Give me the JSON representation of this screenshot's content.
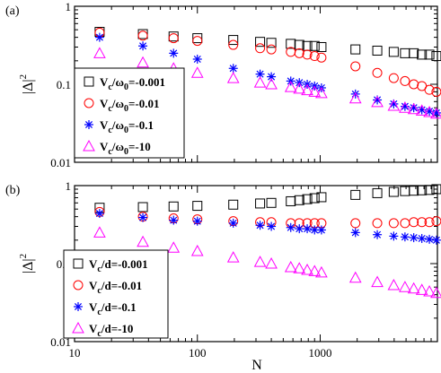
{
  "colors": {
    "black": "#000000",
    "red": "#ff0000",
    "blue": "#0000ff",
    "magenta": "#ff00ff"
  },
  "xlabel": "N",
  "chart_data": [
    {
      "type": "scatter",
      "panel_label": "(a)",
      "ylabel": "|Δ|",
      "ylabel_sup": "2",
      "xscale": "log",
      "yscale": "log",
      "xlim": [
        10,
        9000
      ],
      "ylim": [
        0.01,
        1
      ],
      "x_ticks": [
        "10",
        "100",
        "1000"
      ],
      "y_ticks": [
        "0.01",
        "0.1",
        "1"
      ],
      "legend": "left-lower",
      "x": [
        16,
        36,
        64,
        100,
        196,
        324,
        400,
        576,
        676,
        784,
        900,
        1024,
        1936,
        2916,
        3969,
        4900,
        5776,
        6724,
        7744,
        8836
      ],
      "series": [
        {
          "label_main": "V",
          "label_sub": "c",
          "label_rest": "/ω",
          "label_sub2": "0",
          "label_tail": "=-0.001",
          "marker": "square",
          "color": "#000000",
          "values": [
            0.47,
            0.44,
            0.41,
            0.39,
            0.37,
            0.35,
            0.34,
            0.33,
            0.32,
            0.31,
            0.31,
            0.3,
            0.28,
            0.27,
            0.26,
            0.25,
            0.25,
            0.24,
            0.24,
            0.23
          ]
        },
        {
          "label_main": "V",
          "label_sub": "c",
          "label_rest": "/ω",
          "label_sub2": "0",
          "label_tail": "=-0.01",
          "marker": "circle",
          "color": "#ff0000",
          "values": [
            0.46,
            0.42,
            0.39,
            0.36,
            0.32,
            0.29,
            0.28,
            0.26,
            0.25,
            0.24,
            0.23,
            0.22,
            0.17,
            0.14,
            0.12,
            0.11,
            0.1,
            0.095,
            0.085,
            0.08
          ]
        },
        {
          "label_main": "V",
          "label_sub": "c",
          "label_rest": "/ω",
          "label_sub2": "0",
          "label_tail": "=-0.1",
          "marker": "asterisk",
          "color": "#0000ff",
          "values": [
            0.4,
            0.31,
            0.25,
            0.21,
            0.16,
            0.135,
            0.125,
            0.11,
            0.105,
            0.1,
            0.095,
            0.09,
            0.075,
            0.063,
            0.056,
            0.052,
            0.05,
            0.047,
            0.045,
            0.043
          ]
        },
        {
          "label_main": "V",
          "label_sub": "c",
          "label_rest": "/ω",
          "label_sub2": "0",
          "label_tail": "=-10",
          "marker": "triangle",
          "color": "#ff00ff",
          "values": [
            0.25,
            0.19,
            0.16,
            0.14,
            0.12,
            0.105,
            0.1,
            0.092,
            0.088,
            0.084,
            0.08,
            0.077,
            0.066,
            0.059,
            0.053,
            0.05,
            0.048,
            0.046,
            0.044,
            0.042
          ]
        }
      ]
    },
    {
      "type": "scatter",
      "panel_label": "(b)",
      "ylabel": "|Δ|",
      "ylabel_sup": "2",
      "xscale": "log",
      "yscale": "log",
      "xlim": [
        10,
        9000
      ],
      "ylim": [
        0.01,
        1
      ],
      "x_ticks": [
        "10",
        "100",
        "1000"
      ],
      "y_ticks": [
        "0.01",
        "0.1",
        "1"
      ],
      "legend": "left-lower",
      "x": [
        16,
        36,
        64,
        100,
        196,
        324,
        400,
        576,
        676,
        784,
        900,
        1024,
        1936,
        2916,
        3969,
        4900,
        5776,
        6724,
        7744,
        8836
      ],
      "series": [
        {
          "label_main": "V",
          "label_sub": "c",
          "label_rest": "/d",
          "label_sub2": "",
          "label_tail": "=-0.001",
          "marker": "square",
          "color": "#000000",
          "values": [
            0.52,
            0.53,
            0.54,
            0.55,
            0.57,
            0.59,
            0.6,
            0.63,
            0.65,
            0.67,
            0.69,
            0.71,
            0.76,
            0.8,
            0.83,
            0.85,
            0.86,
            0.87,
            0.88,
            0.9
          ]
        },
        {
          "label_main": "V",
          "label_sub": "c",
          "label_rest": "/d",
          "label_sub2": "",
          "label_tail": "=-0.01",
          "marker": "circle",
          "color": "#ff0000",
          "values": [
            0.46,
            0.4,
            0.38,
            0.37,
            0.35,
            0.34,
            0.34,
            0.33,
            0.33,
            0.33,
            0.33,
            0.33,
            0.33,
            0.33,
            0.33,
            0.33,
            0.34,
            0.34,
            0.34,
            0.35
          ]
        },
        {
          "label_main": "V",
          "label_sub": "c",
          "label_rest": "/d",
          "label_sub2": "",
          "label_tail": "=-0.1",
          "marker": "asterisk",
          "color": "#0000ff",
          "values": [
            0.44,
            0.39,
            0.36,
            0.35,
            0.33,
            0.31,
            0.3,
            0.29,
            0.28,
            0.28,
            0.27,
            0.27,
            0.25,
            0.235,
            0.225,
            0.22,
            0.215,
            0.21,
            0.205,
            0.2
          ]
        },
        {
          "label_main": "V",
          "label_sub": "c",
          "label_rest": "/d",
          "label_sub2": "",
          "label_tail": "=-10",
          "marker": "triangle",
          "color": "#ff00ff",
          "values": [
            0.25,
            0.19,
            0.16,
            0.145,
            0.12,
            0.105,
            0.1,
            0.09,
            0.087,
            0.083,
            0.08,
            0.077,
            0.066,
            0.058,
            0.053,
            0.05,
            0.048,
            0.046,
            0.044,
            0.042
          ]
        }
      ]
    }
  ]
}
